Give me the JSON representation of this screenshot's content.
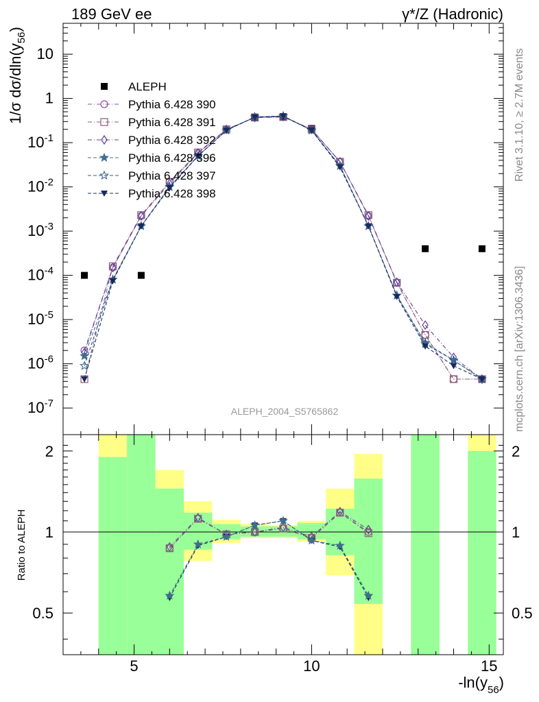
{
  "header": {
    "left_title": "189 GeV ee",
    "right_title_main": "γ*/Z (Hadronic)"
  },
  "side_labels": {
    "rivet": "Rivet 3.1.10, ≥ 2.7M events",
    "mcplots": "mcplots.cern.ch [arXiv:1306.3436]"
  },
  "analysis_id": "ALEPH_2004_S5765862",
  "chart_data": [
    {
      "type": "scatter",
      "panel": "main",
      "ylabel": "1/σ  dσ/dln(y56)",
      "yscale": "log",
      "ylim": [
        2.5e-08,
        50
      ],
      "xlim": [
        3.0,
        15.4
      ],
      "ytick_labels": [
        "10^-7",
        "10^-6",
        "10^-5",
        "10^-4",
        "10^-3",
        "10^-2",
        "10^-1",
        "1",
        "10"
      ],
      "legend_position": "upper-left",
      "series": [
        {
          "name": "ALEPH",
          "marker": "square",
          "color": "#000000",
          "line": "none",
          "x": [
            3.6,
            5.2,
            8.4,
            9.2,
            10.0,
            13.2,
            14.8
          ],
          "y": [
            0.0001,
            0.0001,
            0.38,
            0.38,
            0.21,
            0.0004,
            0.0004
          ]
        },
        {
          "name": "Pythia 6.428 390",
          "marker": "circle-open",
          "color": "#8b4f9a",
          "line": "dashdot",
          "x": [
            3.6,
            4.4,
            5.2,
            6.0,
            6.8,
            7.6,
            8.4,
            9.2,
            10.0,
            10.8,
            11.6,
            12.4,
            13.2,
            14.0,
            14.8
          ],
          "y": [
            2e-06,
            0.00015,
            0.0022,
            0.013,
            0.058,
            0.2,
            0.37,
            0.38,
            0.2,
            0.037,
            0.0022,
            6.8e-05,
            4.5e-06,
            4.5e-07,
            4.5e-07
          ]
        },
        {
          "name": "Pythia 6.428 391",
          "marker": "square-open",
          "color": "#8b5a70",
          "line": "dashdot",
          "x": [
            3.6,
            4.4,
            5.2,
            6.0,
            6.8,
            7.6,
            8.4,
            9.2,
            10.0,
            10.8,
            11.6,
            12.4,
            13.2,
            14.0,
            14.8
          ],
          "y": [
            4.5e-07,
            0.00016,
            0.0023,
            0.013,
            0.06,
            0.2,
            0.37,
            0.38,
            0.2,
            0.037,
            0.0023,
            6.8e-05,
            4.5e-06,
            4.5e-07,
            4.5e-07
          ]
        },
        {
          "name": "Pythia 6.428 392",
          "marker": "diamond-open",
          "color": "#5b3e9a",
          "line": "dashdot",
          "x": [
            3.6,
            4.4,
            5.2,
            6.0,
            6.8,
            7.6,
            8.4,
            9.2,
            10.0,
            10.8,
            11.6,
            12.4,
            13.2,
            14.0,
            14.8
          ],
          "y": [
            1.8e-06,
            0.00015,
            0.0022,
            0.012,
            0.058,
            0.2,
            0.37,
            0.39,
            0.2,
            0.037,
            0.0022,
            7e-05,
            7.5e-06,
            1.4e-06,
            4.5e-07
          ]
        },
        {
          "name": "Pythia 6.428 396",
          "marker": "star-filled",
          "color": "#3f6f8f",
          "line": "dashed",
          "x": [
            3.6,
            4.4,
            5.2,
            6.0,
            6.8,
            7.6,
            8.4,
            9.2,
            10.0,
            10.8,
            11.6,
            12.4,
            13.2,
            14.0,
            14.8
          ],
          "y": [
            1.5e-06,
            8e-05,
            0.0013,
            0.01,
            0.05,
            0.19,
            0.38,
            0.4,
            0.19,
            0.03,
            0.0013,
            3.5e-05,
            3e-06,
            1.2e-06,
            4.5e-07
          ]
        },
        {
          "name": "Pythia 6.428 397",
          "marker": "star-open",
          "color": "#2e5b8a",
          "line": "dashed",
          "x": [
            3.6,
            4.4,
            5.2,
            6.0,
            6.8,
            7.6,
            8.4,
            9.2,
            10.0,
            10.8,
            11.6,
            12.4,
            13.2,
            14.0,
            14.8
          ],
          "y": [
            9e-07,
            8e-05,
            0.0013,
            0.01,
            0.05,
            0.19,
            0.38,
            0.4,
            0.19,
            0.03,
            0.0013,
            3.5e-05,
            2.8e-06,
            1.2e-06,
            4.5e-07
          ]
        },
        {
          "name": "Pythia 6.428 398",
          "marker": "triangle-down-filled",
          "color": "#1a2a5c",
          "line": "dashed",
          "x": [
            3.6,
            4.4,
            5.2,
            6.0,
            6.8,
            7.6,
            8.4,
            9.2,
            10.0,
            10.8,
            11.6,
            12.4,
            13.2,
            14.0,
            14.8
          ],
          "y": [
            4.5e-07,
            7.5e-05,
            0.0013,
            0.0095,
            0.05,
            0.19,
            0.38,
            0.4,
            0.19,
            0.028,
            0.0013,
            3.3e-05,
            2.5e-06,
            9e-07,
            4.5e-07
          ]
        }
      ]
    },
    {
      "type": "line",
      "panel": "ratio",
      "ylabel": "Ratio to ALEPH",
      "xlabel": "-ln(y56)",
      "ylim": [
        0.35,
        2.3
      ],
      "xlim": [
        3.0,
        15.4
      ],
      "ytick_labels": [
        "0.5",
        "1",
        "2"
      ],
      "xtick_labels": [
        "5",
        "10",
        "15"
      ],
      "reference_line": 1.0,
      "uncertainty_bands": [
        {
          "x0": 4.0,
          "x1": 4.8,
          "green": [
            0.35,
            1.9
          ],
          "yellow": [
            0.35,
            2.3
          ]
        },
        {
          "x0": 4.8,
          "x1": 5.6,
          "green": [
            0.35,
            2.3
          ],
          "yellow": [
            0.35,
            2.3
          ]
        },
        {
          "x0": 5.6,
          "x1": 6.4,
          "green": [
            0.35,
            1.45
          ],
          "yellow": [
            0.35,
            1.7
          ]
        },
        {
          "x0": 6.4,
          "x1": 7.2,
          "green": [
            0.86,
            1.18
          ],
          "yellow": [
            0.78,
            1.3
          ]
        },
        {
          "x0": 7.2,
          "x1": 8.0,
          "green": [
            0.94,
            1.07
          ],
          "yellow": [
            0.91,
            1.11
          ]
        },
        {
          "x0": 8.0,
          "x1": 8.8,
          "green": [
            0.96,
            1.05
          ],
          "yellow": [
            0.95,
            1.07
          ]
        },
        {
          "x0": 8.8,
          "x1": 9.6,
          "green": [
            0.96,
            1.05
          ],
          "yellow": [
            0.95,
            1.06
          ]
        },
        {
          "x0": 9.6,
          "x1": 10.4,
          "green": [
            0.94,
            1.08
          ],
          "yellow": [
            0.92,
            1.1
          ]
        },
        {
          "x0": 10.4,
          "x1": 11.2,
          "green": [
            0.82,
            1.22
          ],
          "yellow": [
            0.69,
            1.45
          ]
        },
        {
          "x0": 11.2,
          "x1": 12.0,
          "green": [
            0.54,
            1.58
          ],
          "yellow": [
            0.35,
            1.95
          ]
        },
        {
          "x0": 12.8,
          "x1": 13.6,
          "green": [
            0.35,
            2.3
          ],
          "yellow": [
            0.35,
            2.3
          ]
        },
        {
          "x0": 14.4,
          "x1": 15.2,
          "green": [
            0.35,
            2.0
          ],
          "yellow": [
            0.35,
            2.3
          ]
        }
      ],
      "series": [
        {
          "name": "Pythia 6.428 390",
          "color": "#8b4f9a",
          "line": "dashdot",
          "marker": "circle-open",
          "x": [
            6.0,
            6.8,
            7.6,
            8.4,
            9.2,
            10.0,
            10.8,
            11.6
          ],
          "y": [
            0.87,
            1.12,
            0.98,
            1.0,
            1.03,
            0.95,
            1.18,
            1.0
          ]
        },
        {
          "name": "Pythia 6.428 392",
          "color": "#5b3e9a",
          "line": "dashdot",
          "marker": "diamond-open",
          "x": [
            6.0,
            6.8,
            7.6,
            8.4,
            9.2,
            10.0,
            10.8,
            11.6
          ],
          "y": [
            0.88,
            1.13,
            0.98,
            1.0,
            1.04,
            0.96,
            1.19,
            1.02
          ]
        },
        {
          "name": "Pythia 6.428 391",
          "color": "#8b5a70",
          "line": "dashdot",
          "marker": "square-open",
          "x": [
            6.0,
            6.8,
            7.6,
            8.4,
            9.2,
            10.0,
            10.8,
            11.6
          ],
          "y": [
            0.87,
            1.12,
            0.98,
            1.0,
            1.03,
            0.95,
            1.18,
            0.99
          ]
        },
        {
          "name": "Pythia 6.428 398",
          "color": "#1a2a5c",
          "line": "dashed",
          "marker": "triangle-down-filled",
          "x": [
            6.0,
            6.8,
            7.6,
            8.4,
            9.2,
            10.0,
            10.8,
            11.6
          ],
          "y": [
            0.57,
            0.89,
            0.96,
            1.06,
            1.1,
            0.93,
            0.88,
            0.57
          ]
        },
        {
          "name": "Pythia 6.428 396",
          "color": "#3f6f8f",
          "line": "dashed",
          "marker": "star-filled",
          "x": [
            6.0,
            6.8,
            7.6,
            8.4,
            9.2,
            10.0,
            10.8,
            11.6
          ],
          "y": [
            0.58,
            0.9,
            0.96,
            1.06,
            1.1,
            0.93,
            0.89,
            0.58
          ]
        }
      ]
    }
  ]
}
